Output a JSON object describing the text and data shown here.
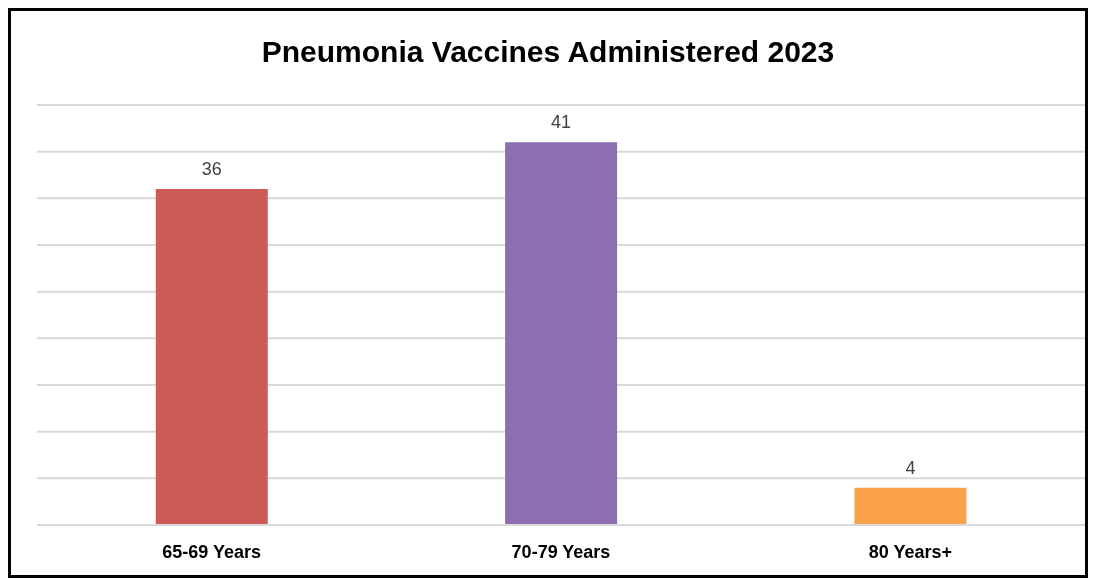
{
  "chart_data": {
    "type": "bar",
    "title": "Pneumonia Vaccines Administered 2023",
    "categories": [
      "65-69 Years",
      "70-79 Years",
      "80 Years+"
    ],
    "values": [
      36,
      41,
      4
    ],
    "colors": [
      "#cd5a57",
      "#8b6fb0",
      "#f9a24a"
    ],
    "tick_labels": "x",
    "grid": "y",
    "data_labels": true
  }
}
